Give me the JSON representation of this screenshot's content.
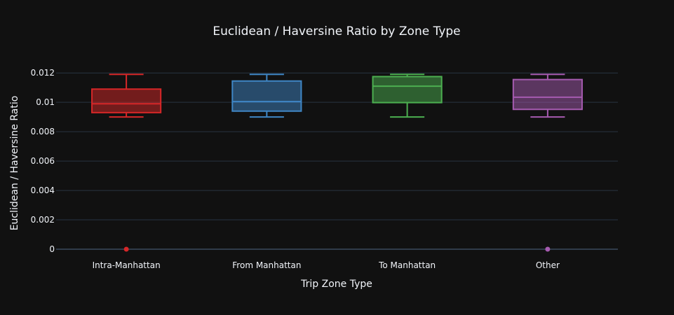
{
  "chart_data": {
    "type": "box",
    "title": "Euclidean / Haversine Ratio by Zone Type",
    "xlabel": "Trip Zone Type",
    "ylabel": "Euclidean / Haversine Ratio",
    "ylim": [
      0,
      0.0122
    ],
    "y_ticks": [
      0,
      0.002,
      0.004,
      0.006,
      0.008,
      0.01,
      0.012
    ],
    "y_tick_labels": [
      "0",
      "0.002",
      "0.004",
      "0.006",
      "0.008",
      "0.01",
      "0.012"
    ],
    "grid": true,
    "categories": [
      "Intra-Manhattan",
      "From Manhattan",
      "To Manhattan",
      "Other"
    ],
    "series": [
      {
        "category": "Intra-Manhattan",
        "color": "#d62728",
        "lower_whisker": 0.009,
        "q1": 0.0093,
        "median": 0.0099,
        "q3": 0.0109,
        "upper_whisker": 0.0119,
        "outliers": [
          0
        ]
      },
      {
        "category": "From Manhattan",
        "color": "#3f86c5",
        "lower_whisker": 0.009,
        "q1": 0.0094,
        "median": 0.01005,
        "q3": 0.01145,
        "upper_whisker": 0.0119,
        "outliers": []
      },
      {
        "category": "To Manhattan",
        "color": "#4caf50",
        "lower_whisker": 0.009,
        "q1": 0.00998,
        "median": 0.0111,
        "q3": 0.01175,
        "upper_whisker": 0.0119,
        "outliers": []
      },
      {
        "category": "Other",
        "color": "#a65bb0",
        "lower_whisker": 0.009,
        "q1": 0.00952,
        "median": 0.01035,
        "q3": 0.01155,
        "upper_whisker": 0.0119,
        "outliers": [
          0
        ]
      }
    ]
  }
}
